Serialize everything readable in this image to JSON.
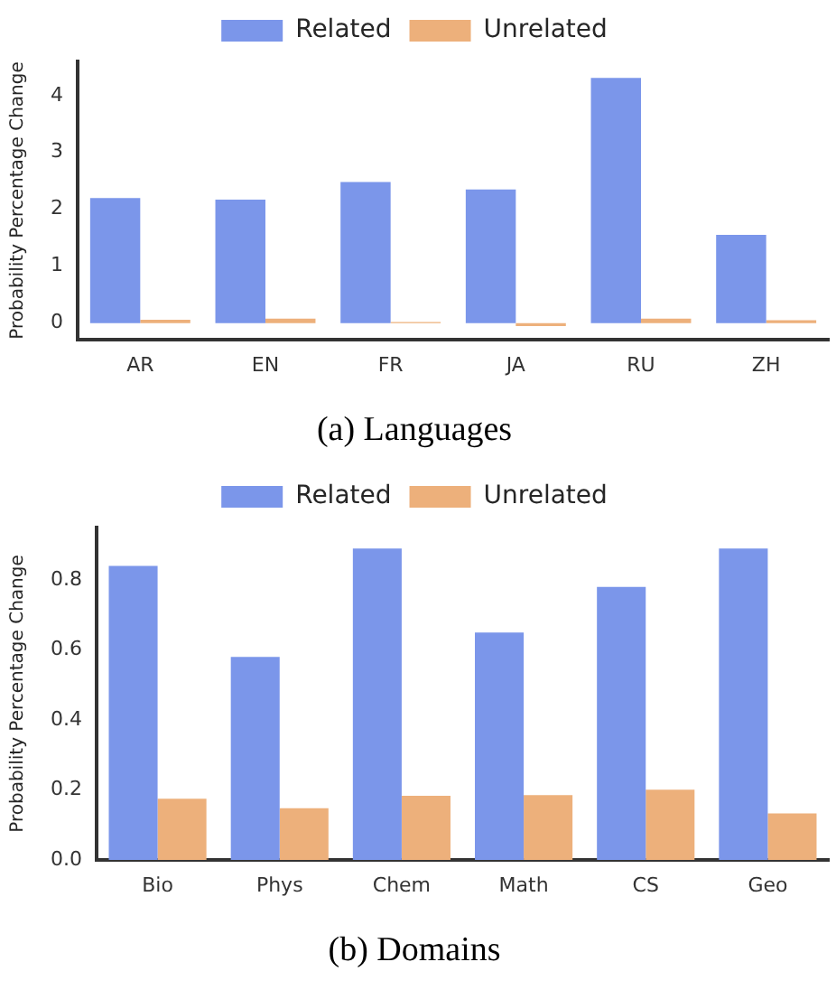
{
  "chart_data": [
    {
      "type": "bar",
      "title": "(a) Languages",
      "ylabel": "Probability Percentage Change",
      "categories": [
        "AR",
        "EN",
        "FR",
        "JA",
        "RU",
        "ZH"
      ],
      "series": [
        {
          "name": "Related",
          "color": "#7b96ea",
          "values": [
            2.2,
            2.17,
            2.48,
            2.35,
            4.31,
            1.55
          ]
        },
        {
          "name": "Unrelated",
          "color": "#edb07b",
          "values": [
            0.06,
            0.08,
            0.02,
            -0.05,
            0.08,
            0.05
          ]
        }
      ],
      "ylim": [
        -0.29,
        4.6
      ],
      "yticks": [
        0,
        1,
        2,
        3,
        4
      ],
      "grid": false,
      "legend": "top"
    },
    {
      "type": "bar",
      "title": "(b) Domains",
      "ylabel": "Probability Percentage Change",
      "categories": [
        "Bio",
        "Phys",
        "Chem",
        "Math",
        "CS",
        "Geo"
      ],
      "series": [
        {
          "name": "Related",
          "color": "#7b96ea",
          "values": [
            0.84,
            0.58,
            0.89,
            0.65,
            0.78,
            0.89
          ]
        },
        {
          "name": "Unrelated",
          "color": "#edb07b",
          "values": [
            0.175,
            0.148,
            0.183,
            0.185,
            0.201,
            0.133
          ]
        }
      ],
      "ylim": [
        0,
        0.95
      ],
      "yticks": [
        {
          "value": 0,
          "label": "0.0"
        },
        0.2,
        0.4,
        0.6,
        0.8
      ],
      "grid": false,
      "legend": "top"
    }
  ]
}
